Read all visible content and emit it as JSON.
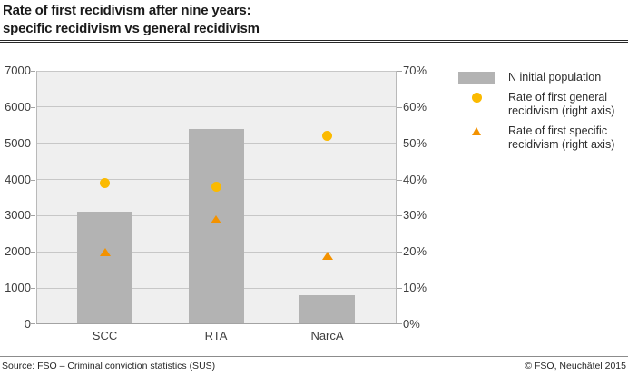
{
  "title": {
    "line1": "Rate of first recidivism after nine years:",
    "line2": "specific recidivism vs general recidivism"
  },
  "colors": {
    "bar": "#b3b3b3",
    "general_marker": "#fbba00",
    "specific_marker": "#f39200",
    "plot_background": "#efefef",
    "gridline": "#c7c7c7",
    "axis_text": "#3d3d3d",
    "title_text": "#1a1a1a"
  },
  "legend": {
    "items": [
      {
        "marker": "bar-swatch",
        "label": "N initial population"
      },
      {
        "marker": "circle",
        "label": "Rate of first general recidivism (right axis)"
      },
      {
        "marker": "triangle",
        "label": "Rate of first specific recidivism (right axis)"
      }
    ]
  },
  "chart_data": {
    "type": "bar",
    "subtype": "bar-with-scatter-overlay",
    "title": "Rate of first recidivism after nine years: specific recidivism vs general recidivism",
    "categories": [
      "SCC",
      "RTA",
      "NarcA"
    ],
    "series": [
      {
        "name": "N initial population",
        "type": "bar",
        "axis": "left",
        "values": [
          3100,
          5400,
          800
        ]
      },
      {
        "name": "Rate of first general recidivism (right axis)",
        "type": "scatter",
        "marker": "circle",
        "axis": "right",
        "values_percent": [
          39,
          38,
          52
        ]
      },
      {
        "name": "Rate of first specific recidivism (right axis)",
        "type": "scatter",
        "marker": "triangle",
        "axis": "right",
        "values_percent": [
          20,
          29,
          19
        ]
      }
    ],
    "left_axis": {
      "min": 0,
      "max": 7000,
      "step": 1000,
      "tick_labels": [
        "7000",
        "6000",
        "5000",
        "4000",
        "3000",
        "2000",
        "1000",
        "0"
      ]
    },
    "right_axis": {
      "min": 0,
      "max": 70,
      "step": 10,
      "tick_labels": [
        "70%",
        "60%",
        "50%",
        "40%",
        "30%",
        "20%",
        "10%",
        "0%"
      ]
    },
    "grid": true,
    "legend_position": "top-right"
  },
  "footer": {
    "source": "Source: FSO – Criminal conviction statistics (SUS)",
    "copyright": "© FSO, Neuchâtel 2015"
  }
}
